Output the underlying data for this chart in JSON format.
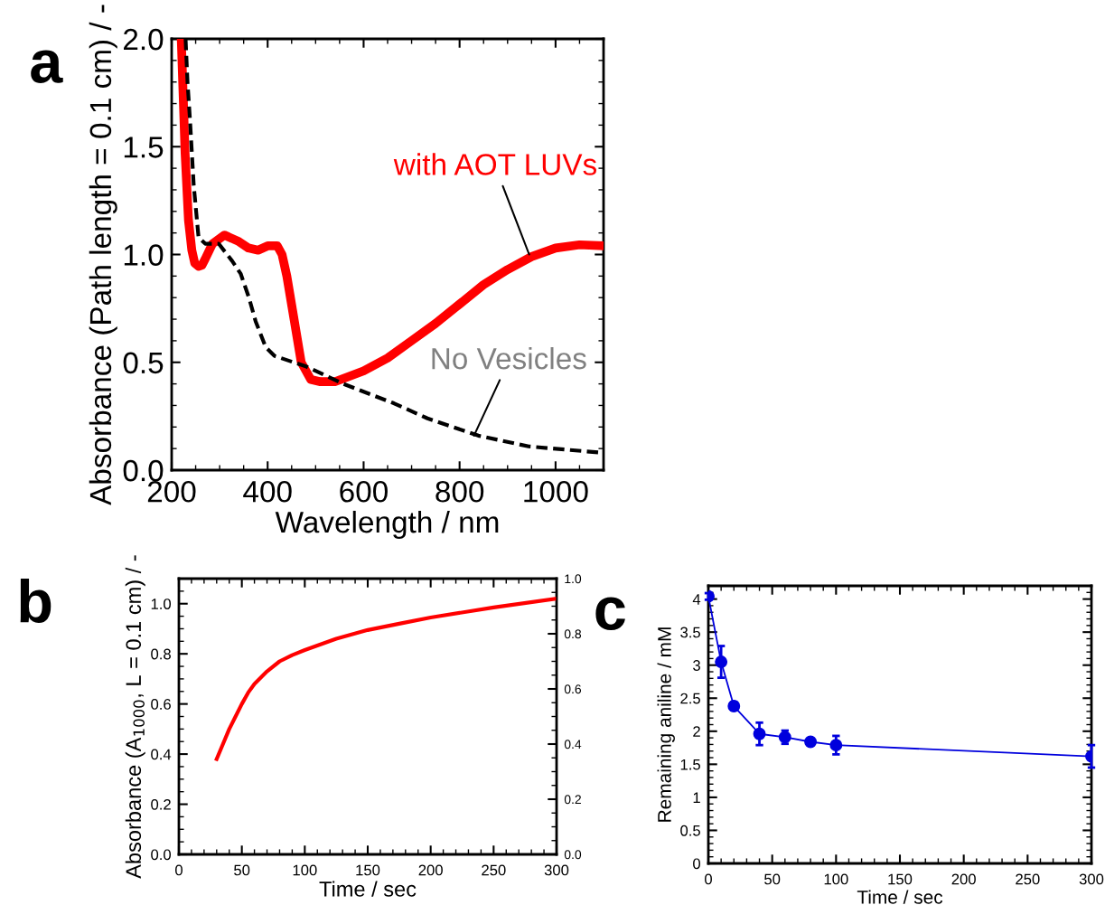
{
  "chart_data": [
    {
      "type": "line",
      "title": "a",
      "xlabel": "Wavelength / nm",
      "ylabel": "Absorbance (Path length = 0.1 cm) / -",
      "xlim": [
        200,
        1100
      ],
      "xticks": [
        200,
        400,
        600,
        800,
        1000
      ],
      "ylim": [
        0,
        2.0
      ],
      "yticks": [
        {
          "value": 0,
          "label": "0.0"
        },
        {
          "value": 0.5,
          "label": "0.5"
        },
        {
          "value": 1,
          "label": "1.0"
        },
        {
          "value": 1.5,
          "label": "1.5"
        },
        {
          "value": 2,
          "label": "2.0"
        }
      ],
      "series": [
        {
          "color": "#ff0000",
          "line_style": "solid",
          "x": [
            220,
            228,
            235,
            242,
            248,
            256,
            263,
            270,
            285,
            310,
            340,
            360,
            380,
            400,
            420,
            430,
            440,
            455,
            470,
            490,
            510,
            540,
            600,
            650,
            700,
            750,
            800,
            850,
            900,
            950,
            1000,
            1050,
            1100
          ],
          "values": [
            2.0,
            1.47,
            1.16,
            1.02,
            0.96,
            0.945,
            0.95,
            0.98,
            1.05,
            1.09,
            1.06,
            1.03,
            1.02,
            1.04,
            1.04,
            1.0,
            0.9,
            0.7,
            0.5,
            0.42,
            0.41,
            0.41,
            0.46,
            0.52,
            0.6,
            0.68,
            0.77,
            0.86,
            0.93,
            0.99,
            1.03,
            1.045,
            1.04
          ]
        },
        {
          "color": "#000000",
          "line_style": "dashed",
          "x": [
            229,
            233,
            238,
            246,
            256,
            270,
            298,
            326,
            344,
            361,
            375,
            396,
            414,
            481,
            558,
            663,
            733,
            839,
            944,
            1100
          ],
          "values": [
            2.0,
            1.8,
            1.63,
            1.32,
            1.08,
            1.05,
            1.05,
            0.97,
            0.91,
            0.8,
            0.69,
            0.57,
            0.53,
            0.48,
            0.4,
            0.31,
            0.24,
            0.16,
            0.11,
            0.08
          ]
        }
      ],
      "annotations": [
        {
          "text": "with AOT LUVs",
          "x": 945,
          "y": 1.0
        },
        {
          "text": "No Vesicles",
          "x": 830,
          "y": 0.16
        }
      ]
    },
    {
      "type": "line",
      "title": "b",
      "xlabel": "Time / sec",
      "ylabel": "Absorbance (A$_{1000}$, L = 0.1 cm) / -",
      "xlim": [
        0,
        300
      ],
      "xticks": [
        0,
        50,
        100,
        150,
        200,
        250,
        300
      ],
      "ylim": [
        0,
        1.1
      ],
      "yticks": [
        {
          "value": 0,
          "label": "0.0"
        },
        {
          "value": 0.2,
          "label": "0.2"
        },
        {
          "value": 0.4,
          "label": "0.4"
        },
        {
          "value": 0.6,
          "label": "0.6"
        },
        {
          "value": 0.8,
          "label": "0.8"
        },
        {
          "value": 1,
          "label": "1.0"
        }
      ],
      "y2lim": [
        0,
        1.0
      ],
      "y2ticks": [
        {
          "value": 0,
          "label": "0.0"
        },
        {
          "value": 0.2,
          "label": "0.2"
        },
        {
          "value": 0.4,
          "label": "0.4"
        },
        {
          "value": 0.6,
          "label": "0.6"
        },
        {
          "value": 0.8,
          "label": "0.8"
        },
        {
          "value": 1,
          "label": "1.0"
        }
      ],
      "series": [
        {
          "color": "#ff0000",
          "x": [
            30,
            35,
            40,
            45,
            50,
            55,
            60,
            70,
            80,
            90,
            100,
            125,
            150,
            175,
            200,
            250,
            300
          ],
          "values": [
            0.38,
            0.44,
            0.5,
            0.55,
            0.6,
            0.645,
            0.68,
            0.73,
            0.77,
            0.795,
            0.815,
            0.86,
            0.895,
            0.92,
            0.945,
            0.985,
            1.02
          ]
        }
      ]
    },
    {
      "type": "line",
      "title": "c",
      "xlabel": "Time / sec",
      "ylabel": "Remaining aniline / mM",
      "marker": "circle",
      "xlim": [
        0,
        300
      ],
      "xticks": [
        0,
        50,
        100,
        150,
        200,
        250,
        300
      ],
      "ylim": [
        0,
        4.2
      ],
      "yticks": [
        0,
        0.5,
        1,
        1.5,
        2,
        2.5,
        3,
        3.5,
        4
      ],
      "series": [
        {
          "color": "#0000dd",
          "x": [
            0,
            10,
            20,
            40,
            60,
            80,
            100,
            300
          ],
          "values": [
            4.04,
            3.05,
            2.38,
            1.96,
            1.91,
            1.84,
            1.79,
            1.62
          ],
          "errors": [
            0.05,
            0.24,
            0.06,
            0.17,
            0.1,
            0.02,
            0.14,
            0.17
          ]
        }
      ]
    }
  ]
}
